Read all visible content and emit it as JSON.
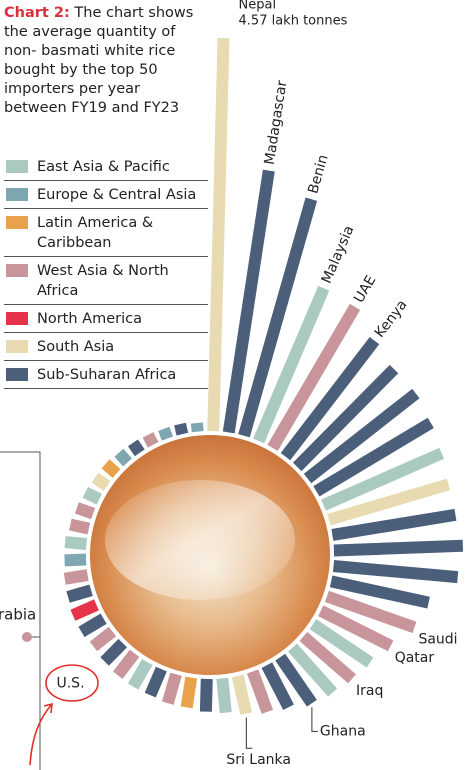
{
  "chart_data": {
    "type": "radial-bar",
    "title_label": "Chart 2:",
    "title": "The chart shows the average quantity of non- basmati white rice bought by the top 50 importers per year between FY19 and FY23",
    "legend": [
      {
        "name": "East Asia & Pacific",
        "color": "#a9c9c1"
      },
      {
        "name": "Europe & Central Asia",
        "color": "#7ea7b2"
      },
      {
        "name": "Latin America & Caribbean",
        "color": "#e9a24c"
      },
      {
        "name": "West Asia & North Africa",
        "color": "#c8959a"
      },
      {
        "name": "North America",
        "color": "#e63349"
      },
      {
        "name": "South Asia",
        "color": "#e8dbb1"
      },
      {
        "name": "Sub-Suharan Africa",
        "color": "#4b5f7b"
      }
    ],
    "categories": [
      "Nepal",
      "Madagascar",
      "Benin",
      "Malaysia",
      "UAE",
      "Kenya",
      null,
      null,
      null,
      null,
      null,
      null,
      null,
      null,
      null,
      "Saudi",
      "Qatar",
      null,
      "Iraq",
      null,
      "Ghana",
      null,
      null,
      "Sri Lanka",
      null,
      null,
      null,
      null,
      null,
      null,
      null,
      null,
      null,
      null,
      "U.S.",
      null,
      null,
      null,
      null,
      null,
      null,
      null,
      null,
      null,
      null,
      null,
      null,
      null,
      null,
      null
    ],
    "values": [
      4.57,
      3.08,
      2.86,
      1.93,
      1.9,
      1.7,
      1.6,
      1.6,
      1.55,
      1.5,
      1.45,
      1.45,
      1.5,
      1.45,
      1.16,
      1.08,
      0.91,
      0.8,
      0.75,
      0.7,
      0.65,
      0.55,
      0.5,
      0.45,
      0.4,
      0.38,
      0.35,
      0.35,
      0.33,
      0.33,
      0.32,
      0.3,
      0.28,
      0.3,
      0.3,
      0.28,
      0.27,
      0.25,
      0.25,
      0.22,
      0.2,
      0.18,
      0.17,
      0.17,
      0.15,
      0.14,
      0.13,
      0.12,
      0.12,
      0.1
    ],
    "value_labels": [
      "4.57 lakh tonnes",
      null,
      null,
      null,
      null,
      null,
      null,
      null,
      null,
      null,
      null,
      null,
      null,
      null,
      null,
      null,
      null,
      null,
      null,
      null,
      null,
      null,
      null,
      null,
      null,
      null,
      null,
      null,
      null,
      null,
      null,
      null,
      null,
      null,
      null,
      null,
      null,
      null,
      null,
      null,
      null,
      null,
      null,
      null,
      null,
      null,
      null,
      null,
      null,
      null
    ],
    "regions": [
      "South Asia",
      "Sub-Suharan Africa",
      "Sub-Suharan Africa",
      "East Asia & Pacific",
      "West Asia & North Africa",
      "Sub-Suharan Africa",
      "Sub-Suharan Africa",
      "Sub-Suharan Africa",
      "Sub-Suharan Africa",
      "East Asia & Pacific",
      "South Asia",
      "Sub-Suharan Africa",
      "Sub-Suharan Africa",
      "Sub-Suharan Africa",
      "Sub-Suharan Africa",
      "West Asia & North Africa",
      "West Asia & North Africa",
      "East Asia & Pacific",
      "West Asia & North Africa",
      "East Asia & Pacific",
      "Sub-Suharan Africa",
      "Sub-Suharan Africa",
      "West Asia & North Africa",
      "South Asia",
      "East Asia & Pacific",
      "Sub-Suharan Africa",
      "Latin America & Caribbean",
      "West Asia & North Africa",
      "Sub-Suharan Africa",
      "East Asia & Pacific",
      "West Asia & North Africa",
      "Sub-Suharan Africa",
      "West Asia & North Africa",
      "Sub-Suharan Africa",
      "North America",
      "Sub-Suharan Africa",
      "West Asia & North Africa",
      "Europe & Central Asia",
      "East Asia & Pacific",
      "West Asia & North Africa",
      "West Asia & North Africa",
      "East Asia & Pacific",
      "South Asia",
      "Latin America & Caribbean",
      "Europe & Central Asia",
      "Sub-Suharan Africa",
      "West Asia & North Africa",
      "Europe & Central Asia",
      "Sub-Suharan Africa",
      "Europe & Central Asia"
    ],
    "side_label": "rabia"
  }
}
